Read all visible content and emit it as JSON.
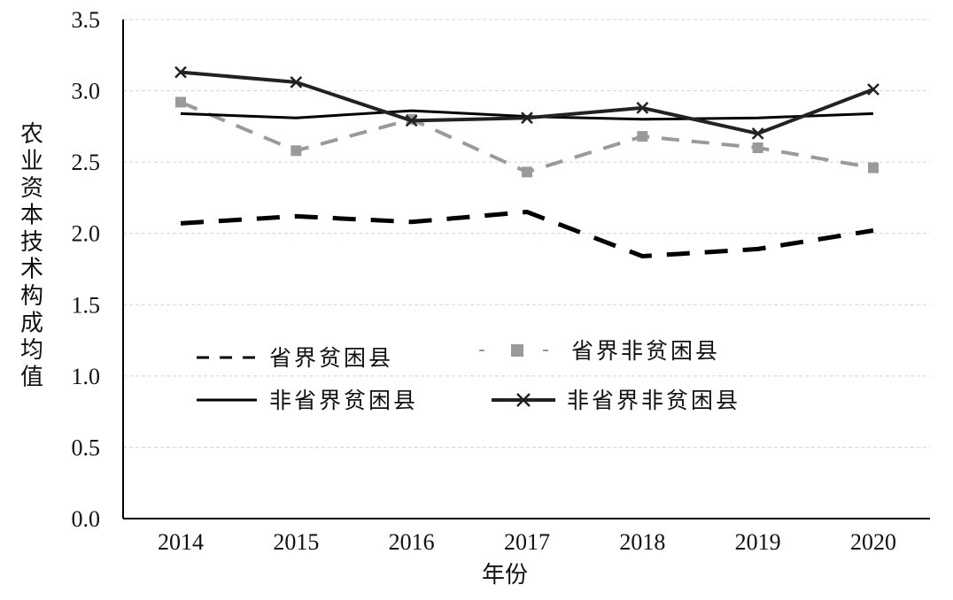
{
  "chart_data": {
    "type": "line",
    "title": "",
    "xlabel": "年份",
    "ylabel": "农业资本技术构成均值",
    "categories": [
      "2014",
      "2015",
      "2016",
      "2017",
      "2018",
      "2019",
      "2020"
    ],
    "ylim": [
      0,
      3.5
    ],
    "yticks": [
      "0.0",
      "0.5",
      "1.0",
      "1.5",
      "2.0",
      "2.5",
      "3.0",
      "3.5"
    ],
    "grid": true,
    "legend": "center-left, two rows",
    "series": [
      {
        "name": "省界贫困县",
        "values": [
          2.07,
          2.12,
          2.08,
          2.15,
          1.84,
          1.89,
          2.02
        ],
        "color": "#000000",
        "style": "dashed",
        "marker": "none"
      },
      {
        "name": "省界非贫困县",
        "values": [
          2.92,
          2.58,
          2.8,
          2.43,
          2.68,
          2.6,
          2.46
        ],
        "color": "#9a9a9a",
        "style": "dashed",
        "marker": "square"
      },
      {
        "name": "非省界贫困县",
        "values": [
          2.84,
          2.81,
          2.86,
          2.82,
          2.8,
          2.81,
          2.84
        ],
        "color": "#000000",
        "style": "solid",
        "marker": "none"
      },
      {
        "name": "非省界非贫困县",
        "values": [
          3.13,
          3.06,
          2.79,
          2.81,
          2.88,
          2.7,
          3.01
        ],
        "color": "#222222",
        "style": "solid",
        "marker": "x"
      }
    ]
  }
}
